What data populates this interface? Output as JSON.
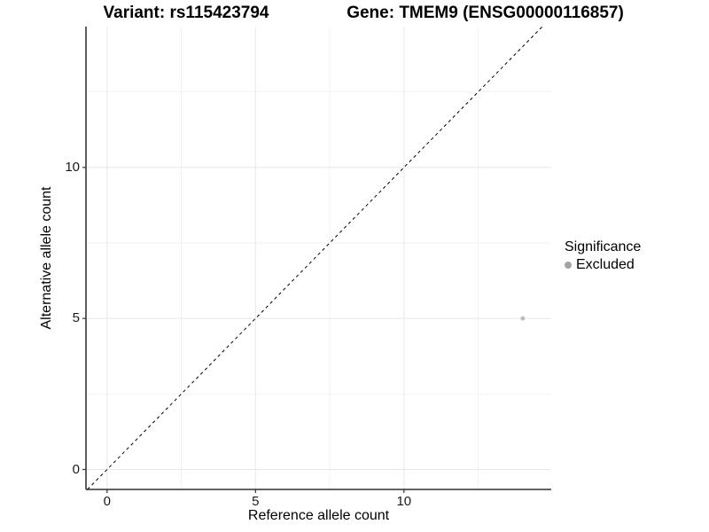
{
  "header": {
    "variant_title": "Variant: rs115423794",
    "gene_title": "Gene: TMEM9 (ENSG00000116857)"
  },
  "chart_data": {
    "type": "scatter",
    "title": "Variant: rs115423794 — Gene: TMEM9 (ENSG00000116857)",
    "xlabel": "Reference allele count",
    "ylabel": "Alternative allele count",
    "xlim": [
      -0.71,
      14.96
    ],
    "ylim": [
      -0.66,
      14.66
    ],
    "x_ticks": [
      0,
      5,
      10
    ],
    "y_ticks": [
      0,
      5,
      10
    ],
    "x_minor_gridlines": [
      2.5,
      7.5,
      12.5
    ],
    "y_minor_gridlines": [
      2.5,
      7.5,
      12.5
    ],
    "grid": true,
    "reference_line": {
      "type": "identity",
      "style": "dashed",
      "color": "#000000"
    },
    "points": [
      {
        "x": 14,
        "y": 5,
        "series": "Excluded"
      }
    ],
    "legend": {
      "title": "Significance",
      "position": "right",
      "items": [
        {
          "label": "Excluded",
          "color": "#a4a4a4"
        }
      ]
    },
    "colors": {
      "point": "#bdbdbd",
      "grid_major": "#e7e7e7",
      "grid_minor": "#f2f2f2",
      "axis_line": "#4d4d4d",
      "tick_mark": "#333333",
      "text": "#000000"
    }
  }
}
